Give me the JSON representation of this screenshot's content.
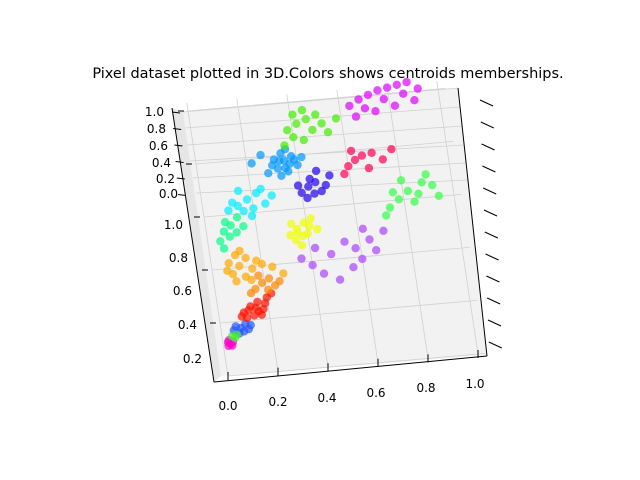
{
  "chart_data": {
    "type": "scatter",
    "title": "Pixel dataset plotted in 3D.Colors shows centroids memberships.",
    "xlim": [
      0.0,
      1.0
    ],
    "ylim": [
      0.0,
      1.0
    ],
    "zlim": [
      0.0,
      1.0
    ],
    "x_ticks": [
      "0.0",
      "0.2",
      "0.4",
      "0.6",
      "0.8",
      "1.0"
    ],
    "y_ticks": [
      "0.2",
      "0.4",
      "0.6",
      "0.8",
      "1.0"
    ],
    "z_ticks": [
      "0.0",
      "0.2",
      "0.4",
      "0.6",
      "0.8",
      "1.0"
    ],
    "grid": true,
    "cluster_colors": [
      "#ff00cc",
      "#2255ff",
      "#44ee33",
      "#ff1100",
      "#ff8800",
      "#ffaa00",
      "#eeff00",
      "#00ff88",
      "#00eeff",
      "#0099ff",
      "#2200ee",
      "#aa44ff",
      "#ff0055",
      "#33ff44",
      "#44ee00",
      "#dd00ff"
    ],
    "clusters": [
      {
        "color": "#ff00cc",
        "points": [
          [
            0.02,
            0.18
          ],
          [
            0.03,
            0.17
          ],
          [
            0.025,
            0.19
          ],
          [
            0.035,
            0.16
          ],
          [
            0.02,
            0.16
          ],
          [
            0.04,
            0.18
          ]
        ]
      },
      {
        "color": "#2255ff",
        "points": [
          [
            0.06,
            0.26
          ],
          [
            0.08,
            0.25
          ],
          [
            0.1,
            0.27
          ],
          [
            0.07,
            0.22
          ],
          [
            0.09,
            0.23
          ],
          [
            0.12,
            0.26
          ],
          [
            0.05,
            0.24
          ],
          [
            0.11,
            0.24
          ]
        ]
      },
      {
        "color": "#44ee33",
        "points": [
          [
            0.04,
            0.21
          ],
          [
            0.05,
            0.2
          ],
          [
            0.06,
            0.215
          ]
        ]
      },
      {
        "color": "#ff1100",
        "points": [
          [
            0.1,
            0.33
          ],
          [
            0.13,
            0.36
          ],
          [
            0.16,
            0.38
          ],
          [
            0.14,
            0.31
          ],
          [
            0.18,
            0.34
          ],
          [
            0.11,
            0.3
          ],
          [
            0.2,
            0.4
          ],
          [
            0.15,
            0.35
          ],
          [
            0.17,
            0.31
          ],
          [
            0.12,
            0.34
          ],
          [
            0.19,
            0.37
          ],
          [
            0.22,
            0.42
          ],
          [
            0.09,
            0.31
          ],
          [
            0.16,
            0.33
          ]
        ]
      },
      {
        "color": "#ff8800",
        "points": [
          [
            0.16,
            0.45
          ],
          [
            0.19,
            0.48
          ],
          [
            0.14,
            0.43
          ],
          [
            0.22,
            0.5
          ],
          [
            0.24,
            0.46
          ],
          [
            0.18,
            0.52
          ],
          [
            0.26,
            0.48
          ],
          [
            0.21,
            0.44
          ]
        ]
      },
      {
        "color": "#ffaa00",
        "points": [
          [
            0.08,
            0.54
          ],
          [
            0.11,
            0.58
          ],
          [
            0.14,
            0.62
          ],
          [
            0.1,
            0.64
          ],
          [
            0.16,
            0.56
          ],
          [
            0.07,
            0.6
          ],
          [
            0.13,
            0.52
          ],
          [
            0.18,
            0.6
          ],
          [
            0.2,
            0.58
          ],
          [
            0.12,
            0.66
          ],
          [
            0.06,
            0.56
          ],
          [
            0.24,
            0.56
          ],
          [
            0.28,
            0.52
          ],
          [
            0.09,
            0.5
          ],
          [
            0.15,
            0.5
          ]
        ]
      },
      {
        "color": "#eeff00",
        "points": [
          [
            0.33,
            0.72
          ],
          [
            0.36,
            0.75
          ],
          [
            0.39,
            0.78
          ],
          [
            0.35,
            0.69
          ],
          [
            0.4,
            0.72
          ],
          [
            0.42,
            0.8
          ],
          [
            0.37,
            0.66
          ],
          [
            0.34,
            0.78
          ],
          [
            0.44,
            0.74
          ],
          [
            0.38,
            0.71
          ],
          [
            0.41,
            0.76
          ],
          [
            0.36,
            0.73
          ]
        ]
      },
      {
        "color": "#00ff88",
        "points": [
          [
            0.07,
            0.77
          ],
          [
            0.1,
            0.8
          ],
          [
            0.13,
            0.84
          ],
          [
            0.09,
            0.74
          ],
          [
            0.15,
            0.79
          ],
          [
            0.05,
            0.72
          ],
          [
            0.12,
            0.76
          ],
          [
            0.08,
            0.82
          ],
          [
            0.06,
            0.68
          ]
        ]
      },
      {
        "color": "#00eeff",
        "points": [
          [
            0.14,
            0.9
          ],
          [
            0.18,
            0.93
          ],
          [
            0.22,
            0.96
          ],
          [
            0.16,
            0.87
          ],
          [
            0.25,
            0.9
          ],
          [
            0.12,
            0.92
          ],
          [
            0.2,
            0.88
          ],
          [
            0.24,
            0.98
          ],
          [
            0.28,
            0.94
          ],
          [
            0.15,
            0.98
          ],
          [
            0.19,
            0.84
          ],
          [
            0.1,
            0.88
          ]
        ]
      },
      {
        "color": "#0099ff",
        "points": [
          [
            0.32,
            1.08
          ],
          [
            0.35,
            1.12
          ],
          [
            0.38,
            1.14
          ],
          [
            0.3,
            1.1
          ],
          [
            0.36,
            1.06
          ],
          [
            0.4,
            1.09
          ],
          [
            0.34,
            1.16
          ],
          [
            0.33,
            1.04
          ],
          [
            0.37,
            1.1
          ],
          [
            0.31,
            1.13
          ],
          [
            0.39,
            1.12
          ],
          [
            0.35,
            1.08
          ],
          [
            0.28,
            1.06
          ],
          [
            0.42,
            1.13
          ],
          [
            0.26,
            1.16
          ],
          [
            0.22,
            1.12
          ],
          [
            0.36,
            1.18
          ],
          [
            0.33,
            1.12
          ]
        ]
      },
      {
        "color": "#2200ee",
        "points": [
          [
            0.4,
            0.94
          ],
          [
            0.43,
            0.97
          ],
          [
            0.46,
            0.99
          ],
          [
            0.42,
            0.91
          ],
          [
            0.48,
            0.94
          ],
          [
            0.44,
            1.01
          ],
          [
            0.39,
            0.98
          ],
          [
            0.5,
            0.97
          ],
          [
            0.45,
            0.93
          ],
          [
            0.52,
            1.02
          ],
          [
            0.47,
            1.05
          ]
        ]
      },
      {
        "color": "#aa44ff",
        "points": [
          [
            0.36,
            0.59
          ],
          [
            0.4,
            0.55
          ],
          [
            0.44,
            0.5
          ],
          [
            0.5,
            0.46
          ],
          [
            0.56,
            0.52
          ],
          [
            0.6,
            0.56
          ],
          [
            0.58,
            0.62
          ],
          [
            0.64,
            0.66
          ],
          [
            0.66,
            0.6
          ],
          [
            0.62,
            0.72
          ],
          [
            0.54,
            0.66
          ],
          [
            0.48,
            0.6
          ],
          [
            0.42,
            0.64
          ],
          [
            0.7,
            0.7
          ]
        ]
      },
      {
        "color": "#ff0055",
        "points": [
          [
            0.6,
            1.06
          ],
          [
            0.63,
            1.09
          ],
          [
            0.66,
            1.11
          ],
          [
            0.58,
            1.02
          ],
          [
            0.7,
            1.12
          ],
          [
            0.74,
            1.08
          ],
          [
            0.78,
            1.13
          ],
          [
            0.62,
            1.14
          ],
          [
            0.68,
            1.04
          ]
        ]
      },
      {
        "color": "#33ff44",
        "points": [
          [
            0.74,
            0.82
          ],
          [
            0.78,
            0.86
          ],
          [
            0.82,
            0.9
          ],
          [
            0.86,
            0.88
          ],
          [
            0.88,
            0.94
          ],
          [
            0.92,
            0.92
          ],
          [
            0.9,
            0.98
          ],
          [
            0.8,
            0.96
          ],
          [
            0.76,
            0.9
          ],
          [
            0.84,
            0.84
          ],
          [
            0.94,
            0.86
          ],
          [
            0.72,
            0.78
          ]
        ]
      },
      {
        "color": "#44ee00",
        "points": [
          [
            0.38,
            1.28
          ],
          [
            0.42,
            1.31
          ],
          [
            0.46,
            1.33
          ],
          [
            0.4,
            1.24
          ],
          [
            0.44,
            1.22
          ],
          [
            0.48,
            1.27
          ],
          [
            0.52,
            1.3
          ],
          [
            0.36,
            1.2
          ],
          [
            0.5,
            1.35
          ],
          [
            0.54,
            1.25
          ],
          [
            0.45,
            1.38
          ],
          [
            0.58,
            1.32
          ],
          [
            0.41,
            1.36
          ]
        ]
      },
      {
        "color": "#dd00ff",
        "points": [
          [
            0.64,
            1.38
          ],
          [
            0.68,
            1.41
          ],
          [
            0.72,
            1.43
          ],
          [
            0.76,
            1.45
          ],
          [
            0.8,
            1.46
          ],
          [
            0.84,
            1.47
          ],
          [
            0.88,
            1.48
          ],
          [
            0.7,
            1.36
          ],
          [
            0.78,
            1.4
          ],
          [
            0.86,
            1.42
          ],
          [
            0.92,
            1.44
          ],
          [
            0.74,
            1.34
          ],
          [
            0.66,
            1.32
          ],
          [
            0.82,
            1.36
          ],
          [
            0.9,
            1.38
          ]
        ]
      }
    ]
  }
}
